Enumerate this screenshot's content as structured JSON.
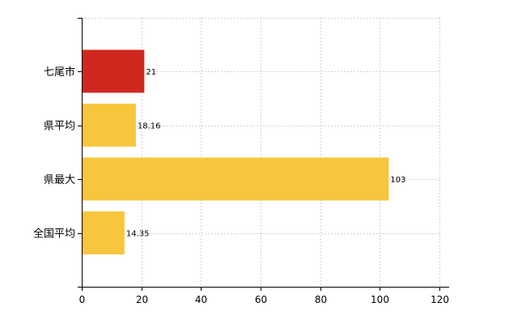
{
  "chart_data": {
    "type": "bar",
    "orientation": "horizontal",
    "categories": [
      "七尾市",
      "県平均",
      "県最大",
      "全国平均"
    ],
    "values": [
      21,
      18.16,
      103,
      14.35
    ],
    "value_labels": [
      "21",
      "18.16",
      "103",
      "14.35"
    ],
    "colors": [
      "#d0281e",
      "#f7c63d",
      "#f7c63d",
      "#f7c63d"
    ],
    "x_ticks": [
      0,
      20,
      40,
      60,
      80,
      100,
      120
    ],
    "xlim": [
      0,
      120
    ],
    "grid": true
  }
}
